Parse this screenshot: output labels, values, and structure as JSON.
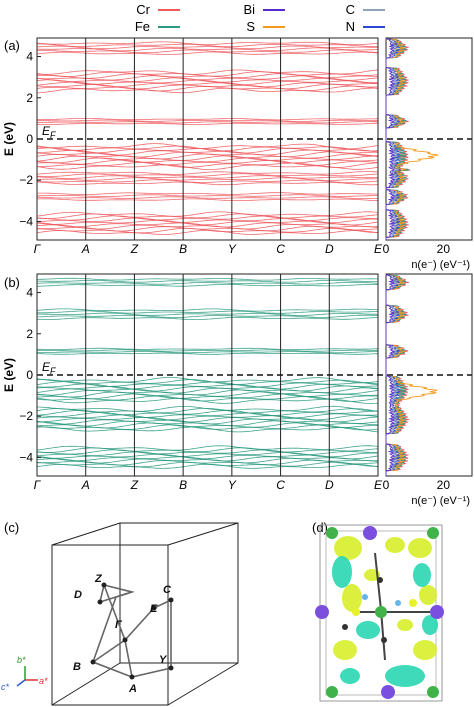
{
  "legend": [
    {
      "label": "Cr",
      "color": "#f05a5f"
    },
    {
      "label": "Bi",
      "color": "#5b2bd1"
    },
    {
      "label": "C",
      "color": "#8fa3b8"
    },
    {
      "label": "Fe",
      "color": "#2b9a80"
    },
    {
      "label": "S",
      "color": "#f59a1b"
    },
    {
      "label": "N",
      "color": "#2a47d6"
    }
  ],
  "panels": {
    "a": {
      "label": "(a)",
      "band_color": "#f05a5f"
    },
    "b": {
      "label": "(b)",
      "band_color": "#2b9a80"
    },
    "c": {
      "label": "(c)"
    },
    "d": {
      "label": "(d)"
    }
  },
  "bands": {
    "ylabel": "E (eV)",
    "yticks": [
      "4",
      "2",
      "0",
      "−2",
      "−4"
    ],
    "ytick_values": [
      4,
      2,
      0,
      -2,
      -4
    ],
    "ylim": [
      -4.9,
      4.9
    ],
    "kpoints": [
      "Γ",
      "A",
      "Z",
      "B",
      "Y",
      "C",
      "D",
      "E"
    ],
    "fermi_label": "EF",
    "fermi_energy": 0
  },
  "dos": {
    "xlabel": "n(e⁻) (eV⁻¹)",
    "xticks": [
      "0",
      "20"
    ],
    "xtick_values": [
      0,
      20
    ]
  },
  "brillouin": {
    "points": [
      "Z",
      "C",
      "D",
      "E",
      "Γ",
      "B",
      "Y",
      "A"
    ],
    "axes": [
      "b*",
      "c*",
      "a*"
    ]
  },
  "chart_data": [
    {
      "type": "line",
      "title": "",
      "panel": "(a)",
      "xlabel": "",
      "ylabel": "E (eV)",
      "x": [
        "Γ",
        "A",
        "Z",
        "B",
        "Y",
        "C",
        "D",
        "E"
      ],
      "ylim": [
        -4.9,
        4.9
      ],
      "band_groups_eV": [
        [
          -4.6,
          -3.6
        ],
        [
          -3.0,
          -2.6
        ],
        [
          -2.2,
          -1.6
        ],
        [
          -1.4,
          -0.3
        ],
        [
          0.7,
          1.0
        ],
        [
          2.3,
          3.3
        ],
        [
          4.1,
          4.7
        ]
      ]
    },
    {
      "type": "line",
      "title": "",
      "panel": "(b)",
      "xlabel": "",
      "ylabel": "E (eV)",
      "x": [
        "Γ",
        "A",
        "Z",
        "B",
        "Y",
        "C",
        "D",
        "E"
      ],
      "ylim": [
        -4.9,
        4.9
      ],
      "band_groups_eV": [
        [
          -4.5,
          -3.5
        ],
        [
          -2.7,
          -1.6
        ],
        [
          -1.3,
          -0.2
        ],
        [
          1.0,
          1.3
        ],
        [
          2.7,
          3.2
        ],
        [
          4.3,
          4.7
        ]
      ]
    }
  ]
}
